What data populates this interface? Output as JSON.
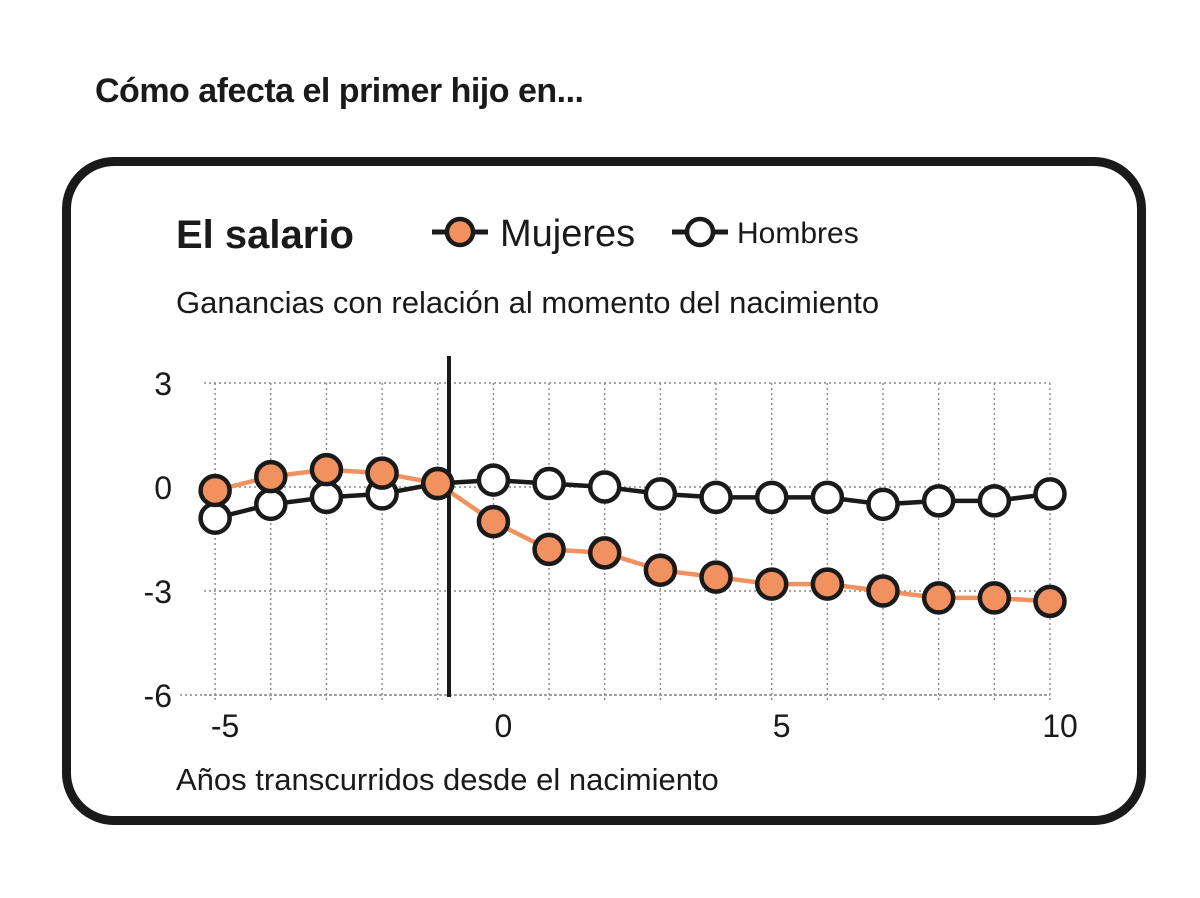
{
  "header": {
    "title": "Cómo afecta el primer hijo en..."
  },
  "chart_data": {
    "type": "line",
    "title": "El salario",
    "subtitle": "Ganancias con relación al momento del nacimiento",
    "xlabel": "Años transcurridos desde el nacimiento",
    "ylabel": "",
    "xlim": [
      -5.2,
      10
    ],
    "ylim": [
      -6,
      3
    ],
    "x_ticks": [
      -5,
      0,
      5,
      10
    ],
    "y_ticks": [
      3,
      0,
      -3,
      -6
    ],
    "x_tick_labels": [
      "-5",
      "0",
      "5",
      "10"
    ],
    "y_tick_labels": [
      "3",
      "0",
      "-3",
      "-6"
    ],
    "grid": "dotted",
    "legend_position": "top",
    "event_line_x": -1,
    "x": [
      -5,
      -4,
      -3,
      -2,
      -1,
      0,
      1,
      2,
      3,
      4,
      5,
      6,
      7,
      8,
      9,
      10
    ],
    "series": [
      {
        "name": "Mujeres",
        "color": "#f0915f",
        "values": [
          -0.1,
          0.3,
          0.5,
          0.4,
          0.1,
          -1.0,
          -1.8,
          -1.9,
          -2.4,
          -2.6,
          -2.8,
          -2.8,
          -3.0,
          -3.2,
          -3.2,
          -3.3
        ]
      },
      {
        "name": "Hombres",
        "color": "#ffffff",
        "values": [
          -0.9,
          -0.5,
          -0.3,
          -0.2,
          0.1,
          0.2,
          0.1,
          0.0,
          -0.2,
          -0.3,
          -0.3,
          -0.3,
          -0.5,
          -0.4,
          -0.4,
          -0.2
        ]
      }
    ]
  }
}
